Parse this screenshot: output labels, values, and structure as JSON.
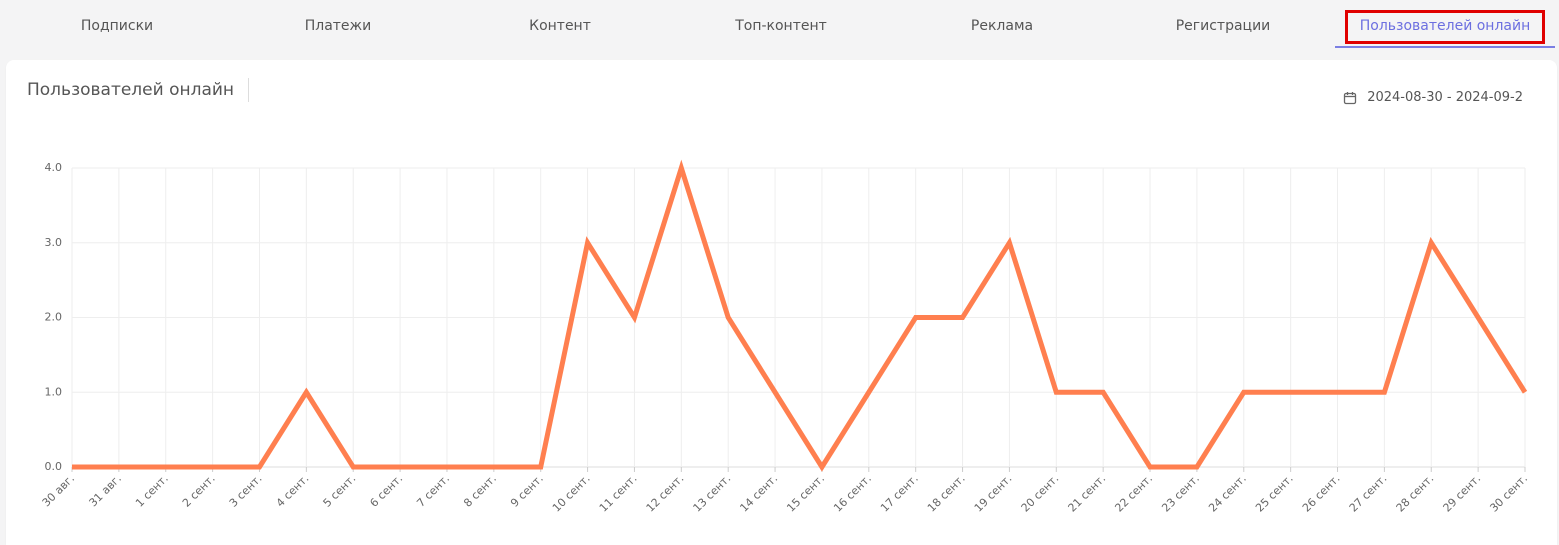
{
  "tabs": [
    {
      "label": "Подписки",
      "active": false
    },
    {
      "label": "Платежи",
      "active": false
    },
    {
      "label": "Контент",
      "active": false
    },
    {
      "label": "Топ-контент",
      "active": false
    },
    {
      "label": "Реклама",
      "active": false
    },
    {
      "label": "Регистрации",
      "active": false
    },
    {
      "label": "Пользователей онлайн",
      "active": true
    }
  ],
  "card": {
    "title": "Пользователей онлайн",
    "date_range": "2024-08-30 - 2024-09-2",
    "date_icon": "calendar-icon"
  },
  "colors": {
    "accent": "#7b7fe3",
    "line": "#ff7f4f",
    "highlight": "#e00000",
    "grid": "#eeeeee"
  },
  "chart_data": {
    "type": "line",
    "categories": [
      "30 авг.",
      "31 авг.",
      "1 сент.",
      "2 сент.",
      "3 сент.",
      "4 сент.",
      "5 сент.",
      "6 сент.",
      "7 сент.",
      "8 сент.",
      "9 сент.",
      "10 сент.",
      "11 сент.",
      "12 сент.",
      "13 сент.",
      "14 сент.",
      "15 сент.",
      "16 сент.",
      "17 сент.",
      "18 сент.",
      "19 сент.",
      "20 сент.",
      "21 сент.",
      "22 сент.",
      "23 сент.",
      "24 сент.",
      "25 сент.",
      "26 сент.",
      "27 сент.",
      "28 сент.",
      "29 сент.",
      "30 сент."
    ],
    "values": [
      0,
      0,
      0,
      0,
      0,
      1,
      0,
      0,
      0,
      0,
      0,
      3,
      2,
      4,
      2,
      1,
      0,
      1,
      2,
      2,
      3,
      1,
      1,
      0,
      0,
      1,
      1,
      1,
      1,
      3,
      2,
      1
    ],
    "yticks": [
      "0.0",
      "1.0",
      "2.0",
      "3.0",
      "4.0"
    ],
    "ylim": [
      0,
      4
    ],
    "grid": true
  }
}
